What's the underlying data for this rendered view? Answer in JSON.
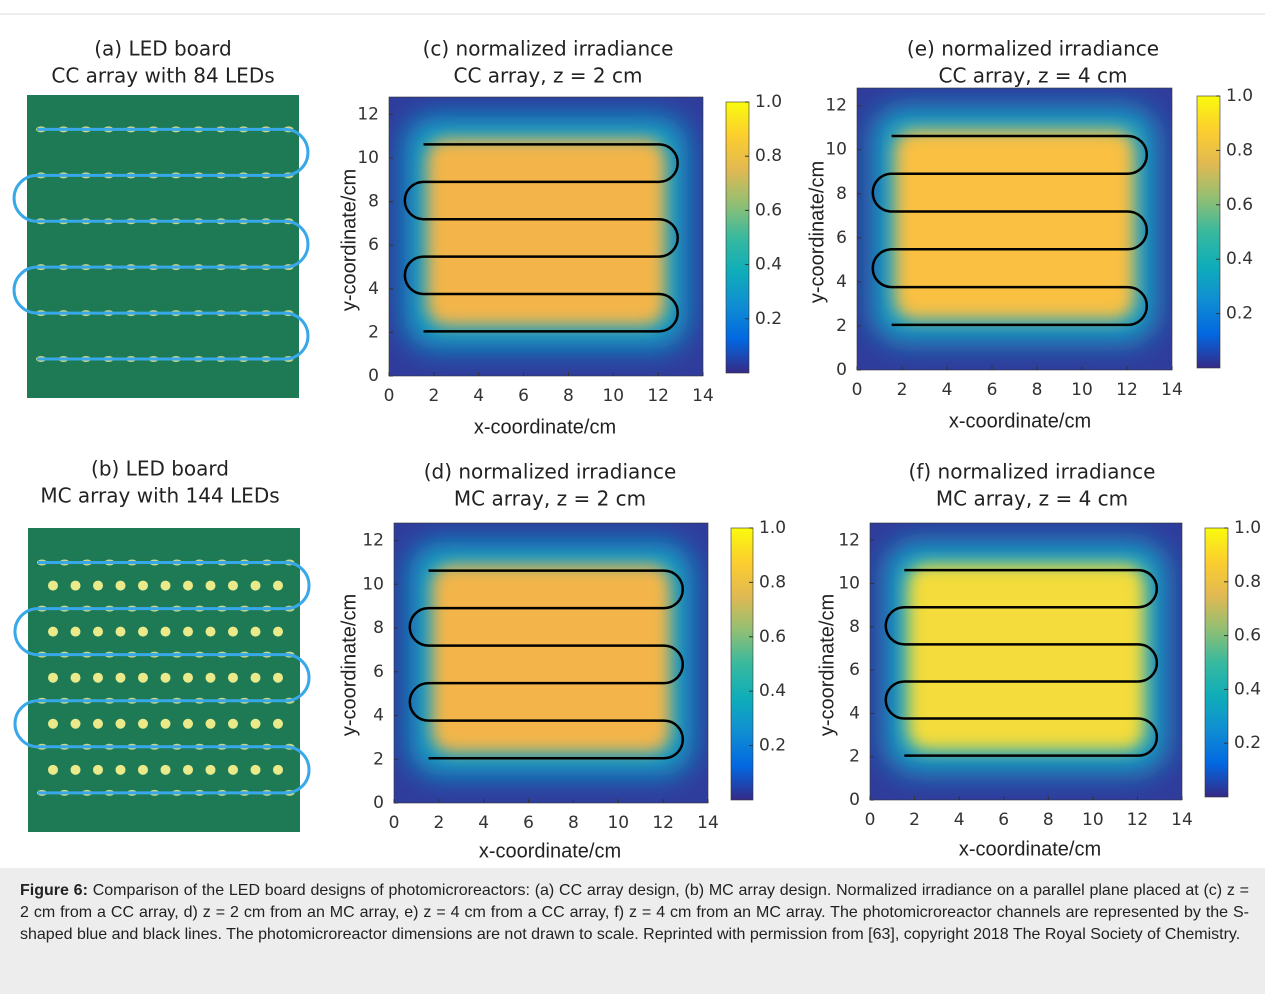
{
  "figure": {
    "panels": [
      {
        "lines": [
          "(a) LED board",
          "CC array with 84 LEDs"
        ]
      },
      {
        "lines": [
          "(b) LED board",
          "MC array with 144 LEDs"
        ]
      },
      {
        "lines": [
          "(c) normalized irradiance",
          "CC array, z = 2 cm"
        ],
        "x_label": "x-coordinate/cm",
        "y_label": "y-coordinate/cm",
        "xlim": [
          0,
          14
        ],
        "ylim": [
          0,
          12.8
        ],
        "xticks": [
          0,
          2,
          4,
          6,
          8,
          10,
          12,
          14
        ],
        "yticks": [
          0,
          2,
          4,
          6,
          8,
          10,
          12
        ],
        "colorbar_lim": [
          0,
          1
        ],
        "colorbar_ticks": [
          0.2,
          0.4,
          0.6,
          0.8,
          {
            "value": 1,
            "label": "1.0"
          }
        ]
      },
      {
        "lines": [
          "(d)  normalized irradiance",
          "MC array, z = 2 cm"
        ],
        "x_label": "x-coordinate/cm",
        "y_label": "y-coordinate/cm",
        "xlim": [
          0,
          14
        ],
        "ylim": [
          0,
          12.8
        ],
        "xticks": [
          0,
          2,
          4,
          6,
          8,
          10,
          12,
          14
        ],
        "yticks": [
          0,
          2,
          4,
          6,
          8,
          10,
          12
        ],
        "colorbar_lim": [
          0,
          1
        ],
        "colorbar_ticks": [
          0.2,
          0.4,
          0.6,
          0.8,
          {
            "value": 1,
            "label": "1.0"
          }
        ]
      },
      {
        "lines": [
          "(e)  normalized irradiance",
          "CC array, z = 4 cm"
        ],
        "x_label": "x-coordinate/cm",
        "y_label": "y-coordinate/cm",
        "xlim": [
          0,
          14
        ],
        "ylim": [
          0,
          12.8
        ],
        "xticks": [
          0,
          2,
          4,
          6,
          8,
          10,
          12,
          14
        ],
        "yticks": [
          0,
          2,
          4,
          6,
          8,
          10,
          12
        ],
        "colorbar_lim": [
          0,
          1
        ],
        "colorbar_ticks": [
          0.2,
          0.4,
          0.6,
          0.8,
          {
            "value": 1,
            "label": "1.0"
          }
        ]
      },
      {
        "lines": [
          "(f) normalized irradiance",
          "MC array, z = 4 cm"
        ],
        "x_label": "x-coordinate/cm",
        "y_label": "y-coordinate/cm",
        "xlim": [
          0,
          14
        ],
        "ylim": [
          0,
          12.8
        ],
        "xticks": [
          0,
          2,
          4,
          6,
          8,
          10,
          12,
          14
        ],
        "yticks": [
          0,
          2,
          4,
          6,
          8,
          10,
          12
        ],
        "colorbar_lim": [
          0,
          1
        ],
        "colorbar_ticks": [
          0.2,
          0.4,
          0.6,
          0.8,
          {
            "value": 1,
            "label": "1.0"
          }
        ]
      }
    ]
  },
  "caption": {
    "label": "Figure 6:",
    "text": "Comparison of the LED board designs of photomicroreactors: (a) CC array design, (b) MC array design. Normalized irradiance on a parallel plane placed at (c) z = 2 cm from a CC array, d) z = 2 cm from an MC array, e) z = 4 cm from a CC array, f) z = 4 cm from an MC array. The photomicroreactor channels are represented by the S-shaped blue and black lines. The photomicroreactor dimensions are not drawn to scale. Reprinted with permission from [63], copyright 2018 The Royal Society of Chemistry."
  }
}
